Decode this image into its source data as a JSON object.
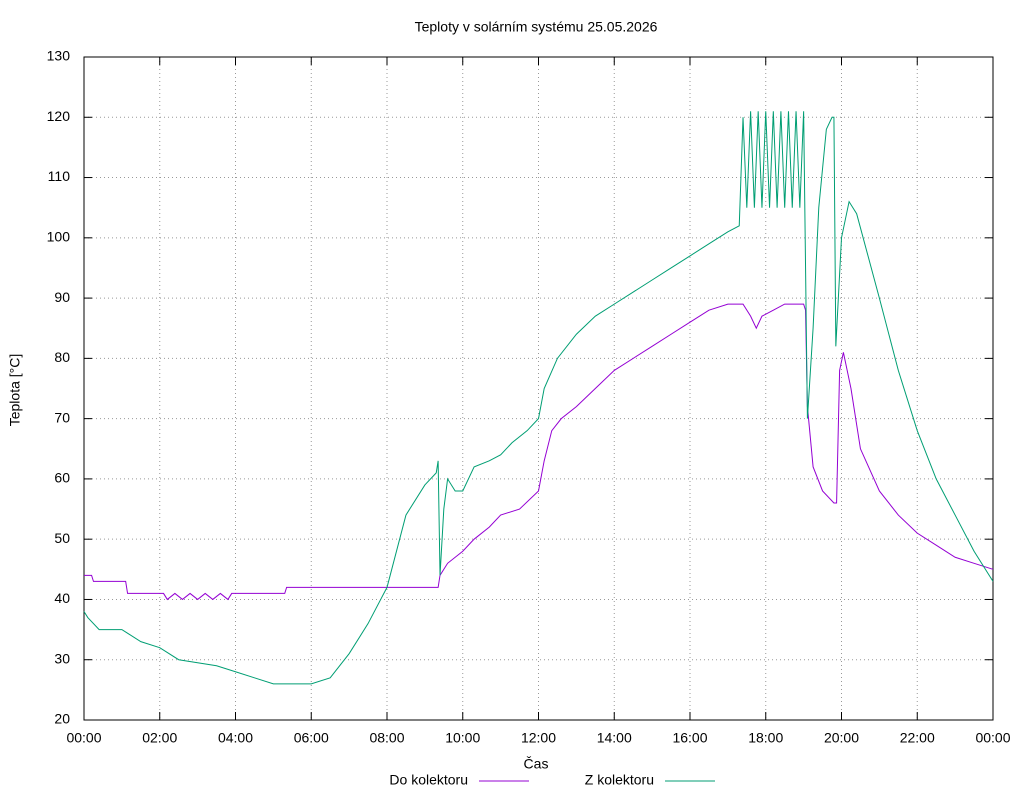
{
  "chart_data": {
    "type": "line",
    "title": "Teploty v solárním systému 25.05.2026",
    "xlabel": "Čas",
    "ylabel": "Teplota [°C]",
    "xlim": [
      0,
      24
    ],
    "ylim": [
      20,
      130
    ],
    "xticks": [
      {
        "value": 0,
        "label": "00:00"
      },
      {
        "value": 2,
        "label": "02:00"
      },
      {
        "value": 4,
        "label": "04:00"
      },
      {
        "value": 6,
        "label": "06:00"
      },
      {
        "value": 8,
        "label": "08:00"
      },
      {
        "value": 10,
        "label": "10:00"
      },
      {
        "value": 12,
        "label": "12:00"
      },
      {
        "value": 14,
        "label": "14:00"
      },
      {
        "value": 16,
        "label": "16:00"
      },
      {
        "value": 18,
        "label": "18:00"
      },
      {
        "value": 20,
        "label": "20:00"
      },
      {
        "value": 22,
        "label": "22:00"
      },
      {
        "value": 24,
        "label": "00:00"
      }
    ],
    "yticks": [
      20,
      30,
      40,
      50,
      60,
      70,
      80,
      90,
      100,
      110,
      120,
      130
    ],
    "grid": true,
    "legend": "bottom",
    "series": [
      {
        "name": "Do kolektoru",
        "color": "#9400d3",
        "x": [
          0,
          0.2,
          0.25,
          1.1,
          1.15,
          2.1,
          2.2,
          2.4,
          2.6,
          2.8,
          3.0,
          3.2,
          3.4,
          3.6,
          3.8,
          3.9,
          5.3,
          5.35,
          9.35,
          9.4,
          9.6,
          10,
          10.3,
          10.7,
          11,
          11.5,
          12,
          12.15,
          12.35,
          12.6,
          13,
          13.5,
          14,
          14.5,
          15,
          15.5,
          16,
          16.5,
          17,
          17.4,
          17.6,
          17.75,
          17.9,
          18.2,
          18.5,
          19.0,
          19.05,
          19.1,
          19.25,
          19.5,
          19.8,
          19.87,
          19.95,
          20.05,
          20.25,
          20.5,
          21,
          21.5,
          22,
          22.5,
          23,
          23.5,
          24
        ],
        "values": [
          44,
          44,
          43,
          43,
          41,
          41,
          40,
          41,
          40,
          41,
          40,
          41,
          40,
          41,
          40,
          41,
          41,
          42,
          42,
          44,
          46,
          48,
          50,
          52,
          54,
          55,
          58,
          63,
          68,
          70,
          72,
          75,
          78,
          80,
          82,
          84,
          86,
          88,
          89,
          89,
          87,
          85,
          87,
          88,
          89,
          89,
          88,
          72,
          62,
          58,
          56,
          56,
          78,
          81,
          75,
          65,
          58,
          54,
          51,
          49,
          47,
          46,
          45
        ]
      },
      {
        "name": "Z kolektoru",
        "color": "#009e73",
        "x": [
          0,
          0.1,
          0.4,
          1.0,
          1.5,
          2.0,
          2.5,
          3.5,
          4.0,
          4.5,
          5.0,
          6.0,
          6.5,
          7.0,
          7.5,
          8.0,
          8.5,
          9.0,
          9.3,
          9.35,
          9.4,
          9.5,
          9.6,
          9.8,
          10.0,
          10.3,
          10.7,
          11.0,
          11.3,
          11.7,
          12.0,
          12.15,
          12.5,
          13.0,
          13.5,
          14.0,
          14.5,
          15.0,
          15.5,
          16.0,
          16.5,
          17.0,
          17.3,
          17.4,
          17.5,
          17.6,
          17.7,
          17.8,
          17.9,
          18.0,
          18.1,
          18.2,
          18.3,
          18.4,
          18.5,
          18.6,
          18.7,
          18.8,
          18.9,
          19.0,
          19.1,
          19.25,
          19.4,
          19.6,
          19.75,
          19.8,
          19.85,
          20.0,
          20.2,
          20.4,
          20.7,
          21.0,
          21.5,
          22.0,
          22.5,
          23.0,
          23.5,
          24.0
        ],
        "values": [
          38,
          37,
          35,
          35,
          33,
          32,
          30,
          29,
          28,
          27,
          26,
          26,
          27,
          31,
          36,
          42,
          54,
          59,
          61,
          63,
          44,
          55,
          60,
          58,
          58,
          62,
          63,
          64,
          66,
          68,
          70,
          75,
          80,
          84,
          87,
          89,
          91,
          93,
          95,
          97,
          99,
          101,
          102,
          120,
          105,
          121,
          105,
          121,
          105,
          121,
          105,
          121,
          105,
          121,
          105,
          121,
          105,
          121,
          105,
          121,
          70,
          85,
          105,
          118,
          120,
          120,
          82,
          100,
          106,
          104,
          97,
          90,
          78,
          68,
          60,
          54,
          48,
          43
        ]
      }
    ]
  }
}
